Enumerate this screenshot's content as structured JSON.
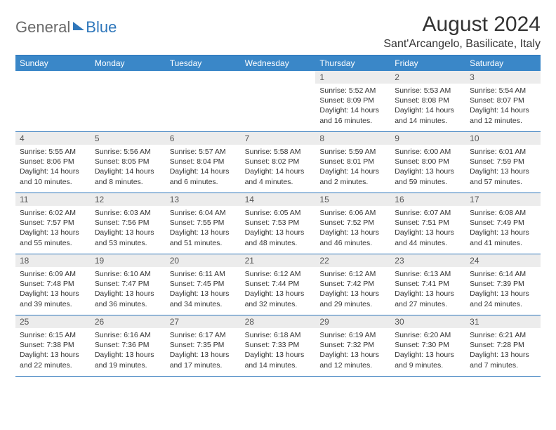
{
  "logo": {
    "text1": "General",
    "text2": "Blue"
  },
  "title": "August 2024",
  "location": "Sant'Arcangelo, Basilicate, Italy",
  "colors": {
    "header_bg": "#3a87c8",
    "border": "#2f77bb",
    "daynum_bg": "#ececec",
    "text": "#333333",
    "logo_gray": "#6a6a6a",
    "logo_blue": "#2f77bb"
  },
  "day_names": [
    "Sunday",
    "Monday",
    "Tuesday",
    "Wednesday",
    "Thursday",
    "Friday",
    "Saturday"
  ],
  "weeks": [
    [
      {
        "empty": true
      },
      {
        "empty": true
      },
      {
        "empty": true
      },
      {
        "empty": true
      },
      {
        "n": "1",
        "sr": "5:52 AM",
        "ss": "8:09 PM",
        "dl": "14 hours and 16 minutes."
      },
      {
        "n": "2",
        "sr": "5:53 AM",
        "ss": "8:08 PM",
        "dl": "14 hours and 14 minutes."
      },
      {
        "n": "3",
        "sr": "5:54 AM",
        "ss": "8:07 PM",
        "dl": "14 hours and 12 minutes."
      }
    ],
    [
      {
        "n": "4",
        "sr": "5:55 AM",
        "ss": "8:06 PM",
        "dl": "14 hours and 10 minutes."
      },
      {
        "n": "5",
        "sr": "5:56 AM",
        "ss": "8:05 PM",
        "dl": "14 hours and 8 minutes."
      },
      {
        "n": "6",
        "sr": "5:57 AM",
        "ss": "8:04 PM",
        "dl": "14 hours and 6 minutes."
      },
      {
        "n": "7",
        "sr": "5:58 AM",
        "ss": "8:02 PM",
        "dl": "14 hours and 4 minutes."
      },
      {
        "n": "8",
        "sr": "5:59 AM",
        "ss": "8:01 PM",
        "dl": "14 hours and 2 minutes."
      },
      {
        "n": "9",
        "sr": "6:00 AM",
        "ss": "8:00 PM",
        "dl": "13 hours and 59 minutes."
      },
      {
        "n": "10",
        "sr": "6:01 AM",
        "ss": "7:59 PM",
        "dl": "13 hours and 57 minutes."
      }
    ],
    [
      {
        "n": "11",
        "sr": "6:02 AM",
        "ss": "7:57 PM",
        "dl": "13 hours and 55 minutes."
      },
      {
        "n": "12",
        "sr": "6:03 AM",
        "ss": "7:56 PM",
        "dl": "13 hours and 53 minutes."
      },
      {
        "n": "13",
        "sr": "6:04 AM",
        "ss": "7:55 PM",
        "dl": "13 hours and 51 minutes."
      },
      {
        "n": "14",
        "sr": "6:05 AM",
        "ss": "7:53 PM",
        "dl": "13 hours and 48 minutes."
      },
      {
        "n": "15",
        "sr": "6:06 AM",
        "ss": "7:52 PM",
        "dl": "13 hours and 46 minutes."
      },
      {
        "n": "16",
        "sr": "6:07 AM",
        "ss": "7:51 PM",
        "dl": "13 hours and 44 minutes."
      },
      {
        "n": "17",
        "sr": "6:08 AM",
        "ss": "7:49 PM",
        "dl": "13 hours and 41 minutes."
      }
    ],
    [
      {
        "n": "18",
        "sr": "6:09 AM",
        "ss": "7:48 PM",
        "dl": "13 hours and 39 minutes."
      },
      {
        "n": "19",
        "sr": "6:10 AM",
        "ss": "7:47 PM",
        "dl": "13 hours and 36 minutes."
      },
      {
        "n": "20",
        "sr": "6:11 AM",
        "ss": "7:45 PM",
        "dl": "13 hours and 34 minutes."
      },
      {
        "n": "21",
        "sr": "6:12 AM",
        "ss": "7:44 PM",
        "dl": "13 hours and 32 minutes."
      },
      {
        "n": "22",
        "sr": "6:12 AM",
        "ss": "7:42 PM",
        "dl": "13 hours and 29 minutes."
      },
      {
        "n": "23",
        "sr": "6:13 AM",
        "ss": "7:41 PM",
        "dl": "13 hours and 27 minutes."
      },
      {
        "n": "24",
        "sr": "6:14 AM",
        "ss": "7:39 PM",
        "dl": "13 hours and 24 minutes."
      }
    ],
    [
      {
        "n": "25",
        "sr": "6:15 AM",
        "ss": "7:38 PM",
        "dl": "13 hours and 22 minutes."
      },
      {
        "n": "26",
        "sr": "6:16 AM",
        "ss": "7:36 PM",
        "dl": "13 hours and 19 minutes."
      },
      {
        "n": "27",
        "sr": "6:17 AM",
        "ss": "7:35 PM",
        "dl": "13 hours and 17 minutes."
      },
      {
        "n": "28",
        "sr": "6:18 AM",
        "ss": "7:33 PM",
        "dl": "13 hours and 14 minutes."
      },
      {
        "n": "29",
        "sr": "6:19 AM",
        "ss": "7:32 PM",
        "dl": "13 hours and 12 minutes."
      },
      {
        "n": "30",
        "sr": "6:20 AM",
        "ss": "7:30 PM",
        "dl": "13 hours and 9 minutes."
      },
      {
        "n": "31",
        "sr": "6:21 AM",
        "ss": "7:28 PM",
        "dl": "13 hours and 7 minutes."
      }
    ]
  ],
  "labels": {
    "sunrise": "Sunrise: ",
    "sunset": "Sunset: ",
    "daylight": "Daylight: "
  }
}
